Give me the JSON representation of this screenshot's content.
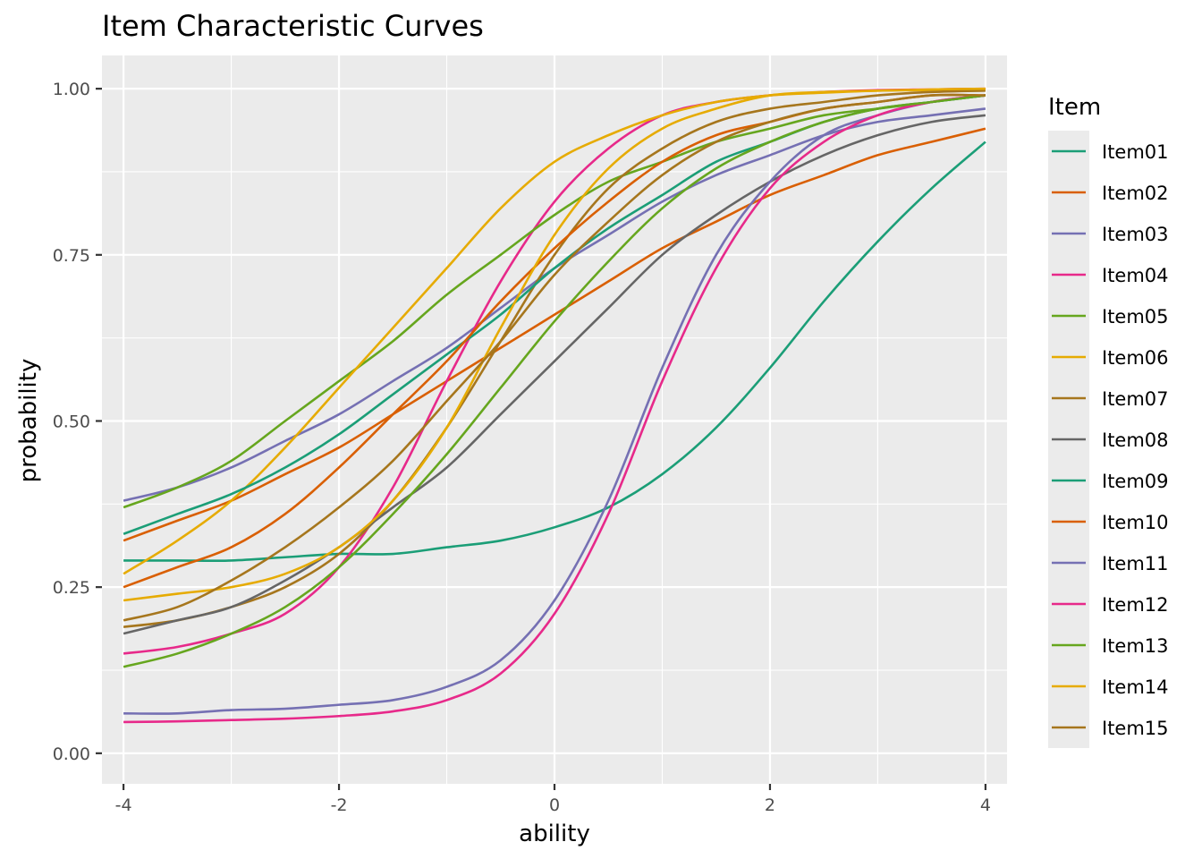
{
  "chart_data": {
    "type": "line",
    "title": "Item Characteristic Curves",
    "xlabel": "ability",
    "ylabel": "probability",
    "xlim": [
      -4.2,
      4.2
    ],
    "ylim": [
      -0.046,
      1.05
    ],
    "x_ticks": [
      -4,
      -2,
      0,
      2,
      4
    ],
    "x_tick_labels": [
      "-4",
      "-2",
      "0",
      "2",
      "4"
    ],
    "y_ticks": [
      0,
      0.25,
      0.5,
      0.75,
      1
    ],
    "y_tick_labels": [
      "0.00",
      "0.25",
      "0.50",
      "0.75",
      "1.00"
    ],
    "grid": true,
    "legend_title": "Item",
    "legend_position": "right",
    "x": [
      -4,
      -3.5,
      -3,
      -2.5,
      -2,
      -1.5,
      -1,
      -0.5,
      0,
      0.5,
      1,
      1.5,
      2,
      2.5,
      3,
      3.5,
      4
    ],
    "series": [
      {
        "name": "Item01",
        "color": "#1b9e77",
        "values": [
          0.29,
          0.29,
          0.29,
          0.295,
          0.3,
          0.3,
          0.31,
          0.32,
          0.34,
          0.37,
          0.42,
          0.49,
          0.58,
          0.68,
          0.77,
          0.85,
          0.92
        ]
      },
      {
        "name": "Item02",
        "color": "#d95f02",
        "values": [
          0.32,
          0.35,
          0.38,
          0.42,
          0.46,
          0.51,
          0.56,
          0.61,
          0.66,
          0.71,
          0.76,
          0.8,
          0.84,
          0.87,
          0.9,
          0.92,
          0.94
        ]
      },
      {
        "name": "Item03",
        "color": "#7570b3",
        "values": [
          0.38,
          0.4,
          0.43,
          0.47,
          0.51,
          0.56,
          0.61,
          0.67,
          0.73,
          0.78,
          0.83,
          0.87,
          0.9,
          0.93,
          0.95,
          0.96,
          0.97
        ]
      },
      {
        "name": "Item04",
        "color": "#e7298a",
        "values": [
          0.15,
          0.16,
          0.18,
          0.21,
          0.28,
          0.4,
          0.56,
          0.71,
          0.83,
          0.91,
          0.96,
          0.98,
          0.99,
          0.995,
          0.998,
          0.999,
          1.0
        ]
      },
      {
        "name": "Item05",
        "color": "#66a61e",
        "values": [
          0.37,
          0.4,
          0.44,
          0.5,
          0.56,
          0.62,
          0.69,
          0.75,
          0.81,
          0.86,
          0.89,
          0.92,
          0.94,
          0.96,
          0.97,
          0.98,
          0.99
        ]
      },
      {
        "name": "Item06",
        "color": "#e6ab02",
        "values": [
          0.27,
          0.32,
          0.38,
          0.46,
          0.55,
          0.64,
          0.73,
          0.82,
          0.89,
          0.93,
          0.96,
          0.98,
          0.99,
          0.994,
          0.997,
          0.998,
          0.999
        ]
      },
      {
        "name": "Item07",
        "color": "#a6761d",
        "values": [
          0.19,
          0.2,
          0.22,
          0.25,
          0.3,
          0.38,
          0.49,
          0.62,
          0.75,
          0.85,
          0.91,
          0.95,
          0.97,
          0.98,
          0.99,
          0.995,
          0.997
        ]
      },
      {
        "name": "Item08",
        "color": "#666666",
        "values": [
          0.18,
          0.2,
          0.22,
          0.26,
          0.31,
          0.37,
          0.43,
          0.51,
          0.59,
          0.67,
          0.75,
          0.81,
          0.86,
          0.9,
          0.93,
          0.95,
          0.96
        ]
      },
      {
        "name": "Item09",
        "color": "#1b9e77",
        "values": [
          0.33,
          0.36,
          0.39,
          0.43,
          0.48,
          0.54,
          0.6,
          0.66,
          0.73,
          0.79,
          0.84,
          0.89,
          0.92,
          0.95,
          0.97,
          0.98,
          0.99
        ]
      },
      {
        "name": "Item10",
        "color": "#d95f02",
        "values": [
          0.25,
          0.28,
          0.31,
          0.36,
          0.43,
          0.51,
          0.59,
          0.68,
          0.76,
          0.83,
          0.89,
          0.93,
          0.95,
          0.97,
          0.98,
          0.99,
          0.99
        ]
      },
      {
        "name": "Item11",
        "color": "#7570b3",
        "values": [
          0.06,
          0.06,
          0.065,
          0.067,
          0.073,
          0.08,
          0.1,
          0.14,
          0.23,
          0.38,
          0.58,
          0.75,
          0.86,
          0.93,
          0.96,
          0.98,
          0.99
        ]
      },
      {
        "name": "Item12",
        "color": "#e7298a",
        "values": [
          0.047,
          0.048,
          0.05,
          0.052,
          0.056,
          0.063,
          0.08,
          0.12,
          0.21,
          0.36,
          0.56,
          0.73,
          0.85,
          0.92,
          0.96,
          0.98,
          0.99
        ]
      },
      {
        "name": "Item13",
        "color": "#66a61e",
        "values": [
          0.13,
          0.15,
          0.18,
          0.22,
          0.28,
          0.36,
          0.45,
          0.55,
          0.65,
          0.74,
          0.82,
          0.88,
          0.92,
          0.95,
          0.97,
          0.98,
          0.99
        ]
      },
      {
        "name": "Item14",
        "color": "#e6ab02",
        "values": [
          0.23,
          0.24,
          0.25,
          0.27,
          0.31,
          0.38,
          0.49,
          0.64,
          0.78,
          0.88,
          0.94,
          0.97,
          0.99,
          0.995,
          0.997,
          0.999,
          1.0
        ]
      },
      {
        "name": "Item15",
        "color": "#a6761d",
        "values": [
          0.2,
          0.22,
          0.26,
          0.31,
          0.37,
          0.44,
          0.53,
          0.62,
          0.72,
          0.8,
          0.87,
          0.92,
          0.95,
          0.97,
          0.98,
          0.99,
          0.99
        ]
      }
    ]
  }
}
